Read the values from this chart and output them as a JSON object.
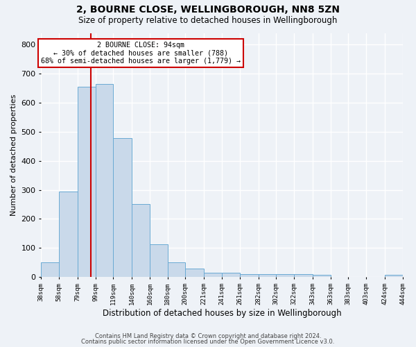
{
  "title": "2, BOURNE CLOSE, WELLINGBOROUGH, NN8 5ZN",
  "subtitle": "Size of property relative to detached houses in Wellingborough",
  "xlabel": "Distribution of detached houses by size in Wellingborough",
  "ylabel": "Number of detached properties",
  "bin_edges": [
    38,
    58,
    79,
    99,
    119,
    140,
    160,
    180,
    200,
    221,
    241,
    261,
    282,
    302,
    322,
    343,
    363,
    383,
    403,
    424,
    444
  ],
  "bar_heights": [
    50,
    295,
    655,
    665,
    478,
    252,
    113,
    50,
    28,
    15,
    15,
    10,
    10,
    10,
    10,
    8,
    0,
    0,
    0,
    8
  ],
  "bar_color": "#c9d9ea",
  "bar_edge_color": "#6aaad4",
  "property_line_x": 94,
  "annotation_line1": "2 BOURNE CLOSE: 94sqm",
  "annotation_line2": "← 30% of detached houses are smaller (788)",
  "annotation_line3": "68% of semi-detached houses are larger (1,779) →",
  "annotation_box_color": "#cc0000",
  "ylim": [
    0,
    840
  ],
  "yticks": [
    0,
    100,
    200,
    300,
    400,
    500,
    600,
    700,
    800
  ],
  "tick_labels": [
    "38sqm",
    "58sqm",
    "79sqm",
    "99sqm",
    "119sqm",
    "140sqm",
    "160sqm",
    "180sqm",
    "200sqm",
    "221sqm",
    "241sqm",
    "261sqm",
    "282sqm",
    "302sqm",
    "322sqm",
    "343sqm",
    "363sqm",
    "383sqm",
    "403sqm",
    "424sqm",
    "444sqm"
  ],
  "footer_line1": "Contains HM Land Registry data © Crown copyright and database right 2024.",
  "footer_line2": "Contains public sector information licensed under the Open Government Licence v3.0.",
  "background_color": "#eef2f7",
  "grid_color": "#ffffff"
}
